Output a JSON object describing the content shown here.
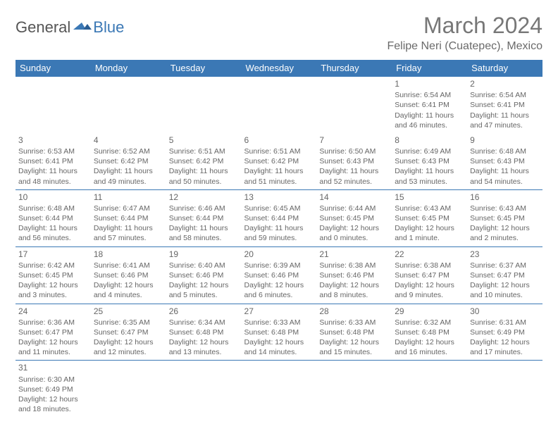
{
  "logo": {
    "text1": "General",
    "text2": "Blue"
  },
  "title": "March 2024",
  "location": "Felipe Neri (Cuatepec), Mexico",
  "colors": {
    "header_bg": "#3b78b5",
    "header_fg": "#ffffff",
    "border": "#3b78b5",
    "text": "#666666",
    "title": "#777777",
    "logo_blue": "#3b78b5",
    "logo_gray": "#555555",
    "background": "#ffffff"
  },
  "dayHeaders": [
    "Sunday",
    "Monday",
    "Tuesday",
    "Wednesday",
    "Thursday",
    "Friday",
    "Saturday"
  ],
  "weeks": [
    [
      null,
      null,
      null,
      null,
      null,
      {
        "n": "1",
        "sr": "6:54 AM",
        "ss": "6:41 PM",
        "dl": "11 hours and 46 minutes."
      },
      {
        "n": "2",
        "sr": "6:54 AM",
        "ss": "6:41 PM",
        "dl": "11 hours and 47 minutes."
      }
    ],
    [
      {
        "n": "3",
        "sr": "6:53 AM",
        "ss": "6:41 PM",
        "dl": "11 hours and 48 minutes."
      },
      {
        "n": "4",
        "sr": "6:52 AM",
        "ss": "6:42 PM",
        "dl": "11 hours and 49 minutes."
      },
      {
        "n": "5",
        "sr": "6:51 AM",
        "ss": "6:42 PM",
        "dl": "11 hours and 50 minutes."
      },
      {
        "n": "6",
        "sr": "6:51 AM",
        "ss": "6:42 PM",
        "dl": "11 hours and 51 minutes."
      },
      {
        "n": "7",
        "sr": "6:50 AM",
        "ss": "6:43 PM",
        "dl": "11 hours and 52 minutes."
      },
      {
        "n": "8",
        "sr": "6:49 AM",
        "ss": "6:43 PM",
        "dl": "11 hours and 53 minutes."
      },
      {
        "n": "9",
        "sr": "6:48 AM",
        "ss": "6:43 PM",
        "dl": "11 hours and 54 minutes."
      }
    ],
    [
      {
        "n": "10",
        "sr": "6:48 AM",
        "ss": "6:44 PM",
        "dl": "11 hours and 56 minutes."
      },
      {
        "n": "11",
        "sr": "6:47 AM",
        "ss": "6:44 PM",
        "dl": "11 hours and 57 minutes."
      },
      {
        "n": "12",
        "sr": "6:46 AM",
        "ss": "6:44 PM",
        "dl": "11 hours and 58 minutes."
      },
      {
        "n": "13",
        "sr": "6:45 AM",
        "ss": "6:44 PM",
        "dl": "11 hours and 59 minutes."
      },
      {
        "n": "14",
        "sr": "6:44 AM",
        "ss": "6:45 PM",
        "dl": "12 hours and 0 minutes."
      },
      {
        "n": "15",
        "sr": "6:43 AM",
        "ss": "6:45 PM",
        "dl": "12 hours and 1 minute."
      },
      {
        "n": "16",
        "sr": "6:43 AM",
        "ss": "6:45 PM",
        "dl": "12 hours and 2 minutes."
      }
    ],
    [
      {
        "n": "17",
        "sr": "6:42 AM",
        "ss": "6:45 PM",
        "dl": "12 hours and 3 minutes."
      },
      {
        "n": "18",
        "sr": "6:41 AM",
        "ss": "6:46 PM",
        "dl": "12 hours and 4 minutes."
      },
      {
        "n": "19",
        "sr": "6:40 AM",
        "ss": "6:46 PM",
        "dl": "12 hours and 5 minutes."
      },
      {
        "n": "20",
        "sr": "6:39 AM",
        "ss": "6:46 PM",
        "dl": "12 hours and 6 minutes."
      },
      {
        "n": "21",
        "sr": "6:38 AM",
        "ss": "6:46 PM",
        "dl": "12 hours and 8 minutes."
      },
      {
        "n": "22",
        "sr": "6:38 AM",
        "ss": "6:47 PM",
        "dl": "12 hours and 9 minutes."
      },
      {
        "n": "23",
        "sr": "6:37 AM",
        "ss": "6:47 PM",
        "dl": "12 hours and 10 minutes."
      }
    ],
    [
      {
        "n": "24",
        "sr": "6:36 AM",
        "ss": "6:47 PM",
        "dl": "12 hours and 11 minutes."
      },
      {
        "n": "25",
        "sr": "6:35 AM",
        "ss": "6:47 PM",
        "dl": "12 hours and 12 minutes."
      },
      {
        "n": "26",
        "sr": "6:34 AM",
        "ss": "6:48 PM",
        "dl": "12 hours and 13 minutes."
      },
      {
        "n": "27",
        "sr": "6:33 AM",
        "ss": "6:48 PM",
        "dl": "12 hours and 14 minutes."
      },
      {
        "n": "28",
        "sr": "6:33 AM",
        "ss": "6:48 PM",
        "dl": "12 hours and 15 minutes."
      },
      {
        "n": "29",
        "sr": "6:32 AM",
        "ss": "6:48 PM",
        "dl": "12 hours and 16 minutes."
      },
      {
        "n": "30",
        "sr": "6:31 AM",
        "ss": "6:49 PM",
        "dl": "12 hours and 17 minutes."
      }
    ],
    [
      {
        "n": "31",
        "sr": "6:30 AM",
        "ss": "6:49 PM",
        "dl": "12 hours and 18 minutes."
      },
      null,
      null,
      null,
      null,
      null,
      null
    ]
  ],
  "labels": {
    "sunrise": "Sunrise: ",
    "sunset": "Sunset: ",
    "daylight": "Daylight: "
  }
}
